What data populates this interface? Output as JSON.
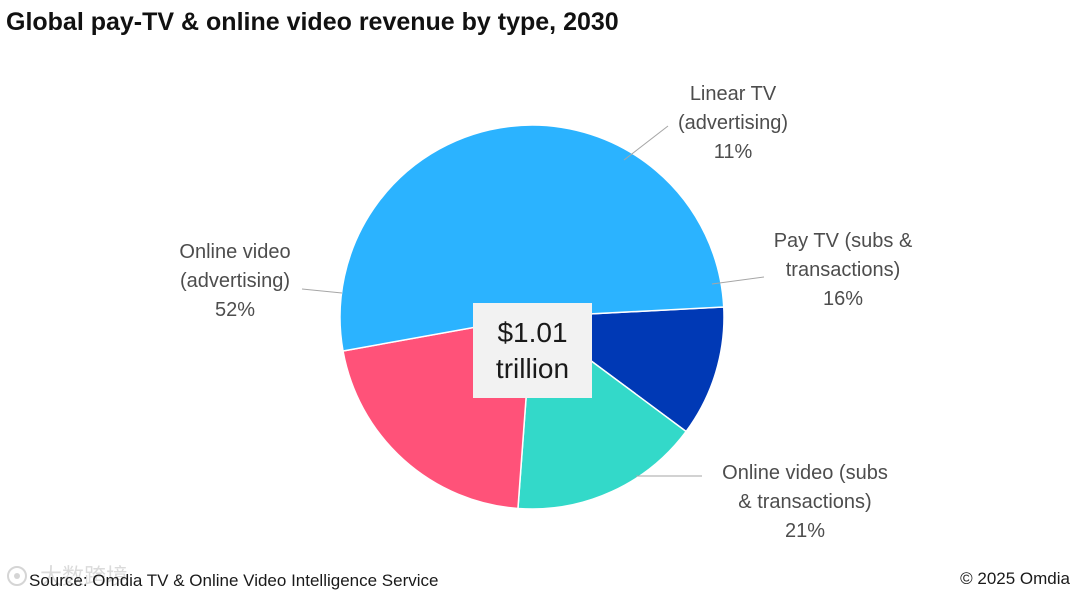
{
  "title": "Global pay-TV & online video revenue by type, 2030",
  "center_label": {
    "line1": "$1.01",
    "line2": "trillion"
  },
  "footer": {
    "source": "Source: Omdia TV & Online Video Intelligence Service",
    "copyright": "© 2025 Omdia"
  },
  "watermark_text": "大数跨境",
  "chart_data": {
    "type": "pie",
    "title": "Global pay-TV & online video revenue by type, 2030",
    "total_label": "$1.01 trillion",
    "slices": [
      {
        "name": "Linear TV (advertising)",
        "label_lines": [
          "Linear TV",
          "(advertising)",
          "11%"
        ],
        "value": 11,
        "color": "#0039b5"
      },
      {
        "name": "Pay TV (subs & transactions)",
        "label_lines": [
          "Pay TV (subs &",
          "transactions)",
          "16%"
        ],
        "value": 16,
        "color": "#33d9c9"
      },
      {
        "name": "Online video (subs & transactions)",
        "label_lines": [
          "Online video (subs",
          "& transactions)",
          "21%"
        ],
        "value": 21,
        "color": "#ff5279"
      },
      {
        "name": "Online video (advertising)",
        "label_lines": [
          "Online video",
          "(advertising)",
          "52%"
        ],
        "value": 52,
        "color": "#2bb3ff"
      }
    ]
  }
}
